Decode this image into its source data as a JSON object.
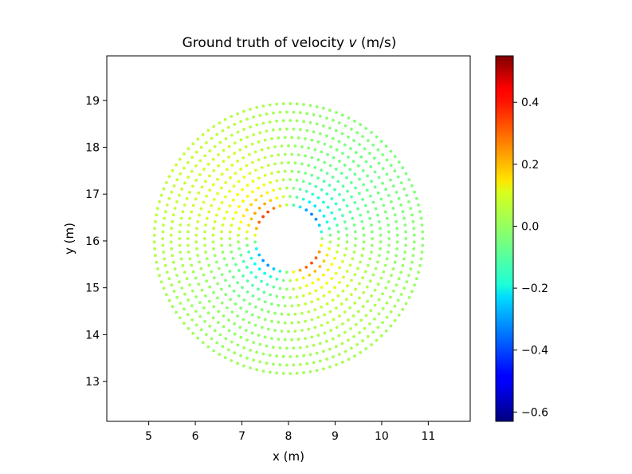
{
  "chart_data": {
    "type": "scatter",
    "title_prefix": "Ground truth of velocity ",
    "title_symbol": "v",
    "title_suffix": " (m/s)",
    "xlabel": "x (m)",
    "ylabel": "y (m)",
    "xlim": [
      4.1,
      11.9
    ],
    "ylim": [
      12.15,
      19.95
    ],
    "xticks": [
      5,
      6,
      7,
      8,
      9,
      10,
      11
    ],
    "yticks": [
      13,
      14,
      15,
      16,
      17,
      18,
      19
    ],
    "colormap": "jet",
    "colorbar": {
      "range": [
        -0.63,
        0.55
      ],
      "ticks": [
        -0.6,
        -0.4,
        -0.2,
        0.0,
        0.2,
        0.4
      ],
      "tick_labels": [
        "−0.6",
        "−0.4",
        "−0.2",
        "0.0",
        "0.2",
        "0.4"
      ]
    },
    "grid": false,
    "legend": "none",
    "flow_field": {
      "description_of_points": "polar sample grid around a square obstacle",
      "disk_center": [
        8.0,
        16.05
      ],
      "disk_radius": 2.95,
      "obstacle_center": [
        8.0,
        16.05
      ],
      "obstacle_half_size": 0.5,
      "obstacle_rotation_deg": 15,
      "rings": [
        0.72,
        0.9,
        1.08,
        1.26,
        1.44,
        1.62,
        1.8,
        1.98,
        2.16,
        2.34,
        2.52,
        2.7,
        2.88
      ],
      "v_min": -0.63,
      "v_max": 0.55
    }
  }
}
